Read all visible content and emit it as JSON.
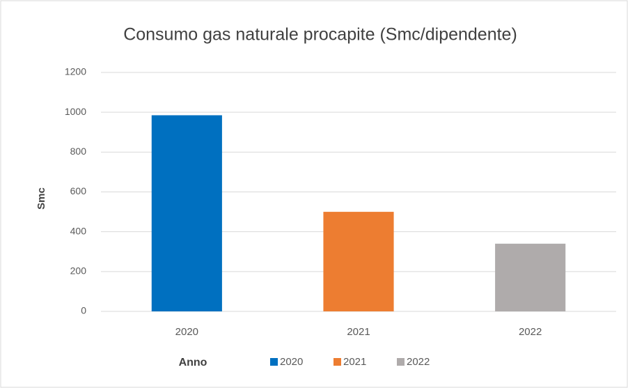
{
  "chart_data": {
    "type": "bar",
    "title": "Consumo gas naturale procapite (Smc/dipendente)",
    "x_label": "Anno",
    "y_label": "Smc",
    "categories": [
      "2020",
      "2021",
      "2022"
    ],
    "values": [
      985,
      500,
      340
    ],
    "colors": [
      "#0070c0",
      "#ed7d31",
      "#afabab"
    ],
    "ylim": [
      0,
      1200
    ],
    "yticks": [
      0,
      200,
      400,
      600,
      800,
      1000,
      1200
    ],
    "grid": true,
    "legend": "bottom-right"
  }
}
